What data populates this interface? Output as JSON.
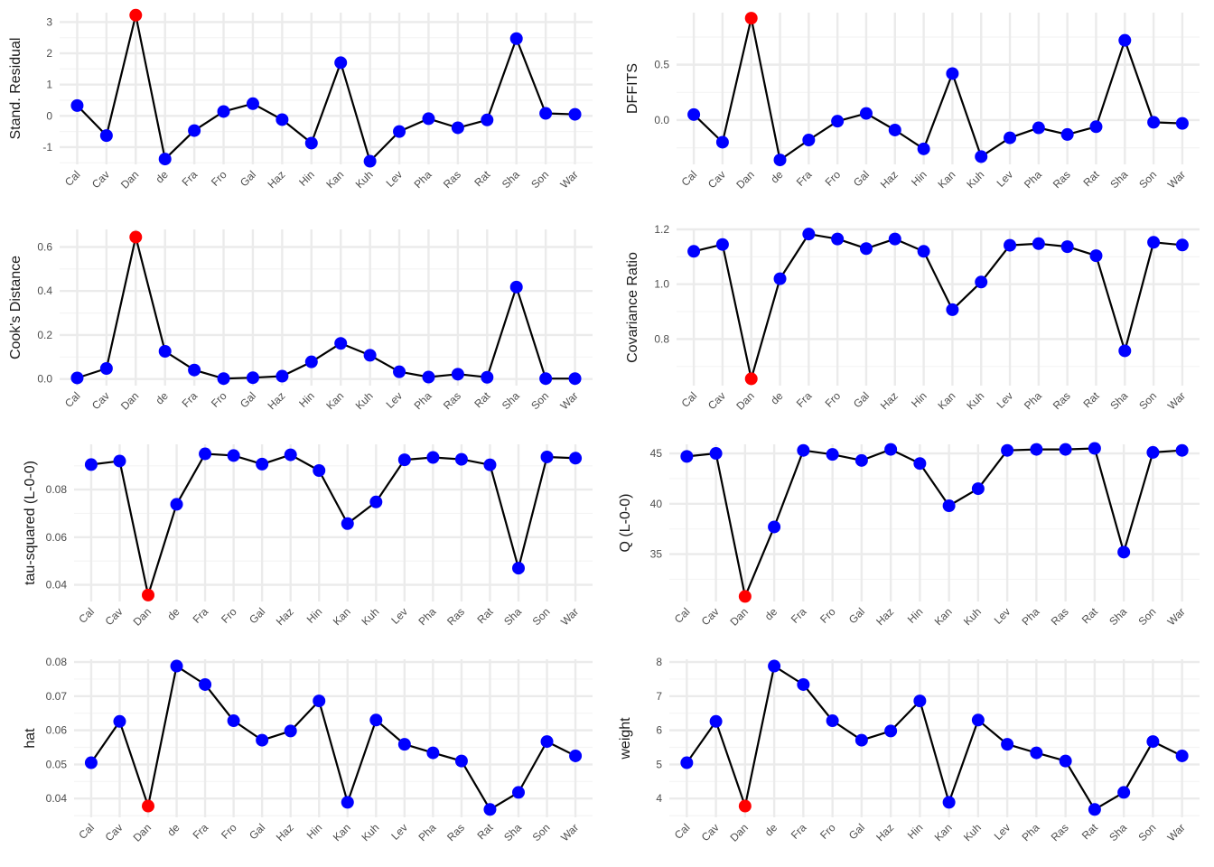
{
  "chart_data": [
    {
      "type": "line",
      "ylabel": "Stand. Residual",
      "categories": [
        "Cal",
        "Cav",
        "Dan",
        "de",
        "Fra",
        "Fro",
        "Gal",
        "Haz",
        "Hin",
        "Kan",
        "Kuh",
        "Lev",
        "Pha",
        "Ras",
        "Rat",
        "Sha",
        "Son",
        "War"
      ],
      "values": [
        0.33,
        -0.63,
        3.22,
        -1.38,
        -0.47,
        0.14,
        0.39,
        -0.12,
        -0.87,
        1.7,
        -1.45,
        -0.5,
        -0.09,
        -0.38,
        -0.13,
        2.47,
        0.08,
        0.05
      ],
      "highlight_index": 2,
      "ylim": [
        -1.55,
        3.3
      ],
      "yticks": [
        -1,
        0,
        1,
        2,
        3
      ],
      "ytick_labels": [
        "-1",
        "0",
        "1",
        "2",
        "3"
      ]
    },
    {
      "type": "line",
      "ylabel": "DFFITS",
      "categories": [
        "Cal",
        "Cav",
        "Dan",
        "de",
        "Fra",
        "Fro",
        "Gal",
        "Haz",
        "Hin",
        "Kan",
        "Kuh",
        "Lev",
        "Pha",
        "Ras",
        "Rat",
        "Sha",
        "Son",
        "War"
      ],
      "values": [
        0.05,
        -0.2,
        0.92,
        -0.36,
        -0.18,
        -0.01,
        0.06,
        -0.09,
        -0.26,
        0.42,
        -0.33,
        -0.16,
        -0.07,
        -0.13,
        -0.06,
        0.72,
        -0.02,
        -0.03
      ],
      "highlight_index": 2,
      "ylim": [
        -0.4,
        0.97
      ],
      "yticks": [
        0.0,
        0.5
      ],
      "ytick_labels": [
        "0.0",
        "0.5"
      ]
    },
    {
      "type": "line",
      "ylabel": "Cook's Distance",
      "categories": [
        "Cal",
        "Cav",
        "Dan",
        "de",
        "Fra",
        "Fro",
        "Gal",
        "Haz",
        "Hin",
        "Kan",
        "Kuh",
        "Lev",
        "Pha",
        "Ras",
        "Rat",
        "Sha",
        "Son",
        "War"
      ],
      "values": [
        0.005,
        0.048,
        0.645,
        0.126,
        0.041,
        0.002,
        0.006,
        0.013,
        0.078,
        0.162,
        0.108,
        0.033,
        0.009,
        0.022,
        0.008,
        0.418,
        0.002,
        0.002
      ],
      "highlight_index": 2,
      "ylim": [
        -0.03,
        0.68
      ],
      "yticks": [
        0.0,
        0.2,
        0.4,
        0.6
      ],
      "ytick_labels": [
        "0.0",
        "0.2",
        "0.4",
        "0.6"
      ]
    },
    {
      "type": "line",
      "ylabel": "Covariance Ratio",
      "categories": [
        "Cal",
        "Cav",
        "Dan",
        "de",
        "Fra",
        "Fro",
        "Gal",
        "Haz",
        "Hin",
        "Kan",
        "Kuh",
        "Lev",
        "Pha",
        "Ras",
        "Rat",
        "Sha",
        "Son",
        "War"
      ],
      "values": [
        1.12,
        1.145,
        0.655,
        1.02,
        1.183,
        1.165,
        1.13,
        1.165,
        1.12,
        0.907,
        1.008,
        1.142,
        1.148,
        1.137,
        1.104,
        0.757,
        1.153,
        1.143
      ],
      "highlight_index": 2,
      "ylim": [
        0.63,
        1.2
      ],
      "yticks": [
        0.8,
        1.0,
        1.2
      ],
      "ytick_labels": [
        "0.8",
        "1.0",
        "1.2"
      ]
    },
    {
      "type": "line",
      "ylabel": "tau-squared (L-0-0)",
      "categories": [
        "Cal",
        "Cav",
        "Dan",
        "de",
        "Fra",
        "Fro",
        "Gal",
        "Haz",
        "Hin",
        "Kan",
        "Kuh",
        "Lev",
        "Pha",
        "Ras",
        "Rat",
        "Sha",
        "Son",
        "War"
      ],
      "values": [
        0.0905,
        0.092,
        0.0357,
        0.0738,
        0.095,
        0.0943,
        0.0907,
        0.0946,
        0.088,
        0.0657,
        0.0748,
        0.0925,
        0.0935,
        0.0927,
        0.0904,
        0.047,
        0.0937,
        0.0932
      ],
      "highlight_index": 2,
      "ylim": [
        0.033,
        0.099
      ],
      "yticks": [
        0.04,
        0.06,
        0.08
      ],
      "ytick_labels": [
        "0.04",
        "0.06",
        "0.08"
      ]
    },
    {
      "type": "line",
      "ylabel": "Q (L-0-0)",
      "categories": [
        "Cal",
        "Cav",
        "Dan",
        "de",
        "Fra",
        "Fro",
        "Gal",
        "Haz",
        "Hin",
        "Kan",
        "Kuh",
        "Lev",
        "Pha",
        "Ras",
        "Rat",
        "Sha",
        "Son",
        "War"
      ],
      "values": [
        44.7,
        45.0,
        30.8,
        37.7,
        45.3,
        44.9,
        44.3,
        45.4,
        44.0,
        39.8,
        41.5,
        45.3,
        45.4,
        45.4,
        45.5,
        35.2,
        45.1,
        45.3
      ],
      "highlight_index": 2,
      "ylim": [
        30.3,
        45.9
      ],
      "yticks": [
        35,
        40,
        45
      ],
      "ytick_labels": [
        "35",
        "40",
        "45"
      ]
    },
    {
      "type": "line",
      "ylabel": "hat",
      "categories": [
        "Cal",
        "Cav",
        "Dan",
        "de",
        "Fra",
        "Fro",
        "Gal",
        "Haz",
        "Hin",
        "Kan",
        "Kuh",
        "Lev",
        "Pha",
        "Ras",
        "Rat",
        "Sha",
        "Son",
        "War"
      ],
      "values": [
        0.0505,
        0.0626,
        0.0378,
        0.0788,
        0.0734,
        0.0628,
        0.0571,
        0.0598,
        0.0686,
        0.0389,
        0.063,
        0.0559,
        0.0534,
        0.051,
        0.0368,
        0.0418,
        0.0567,
        0.0525
      ],
      "highlight_index": 2,
      "ylim": [
        0.0345,
        0.0808
      ],
      "yticks": [
        0.04,
        0.05,
        0.06,
        0.07,
        0.08
      ],
      "ytick_labels": [
        "0.04",
        "0.05",
        "0.06",
        "0.07",
        "0.08"
      ]
    },
    {
      "type": "line",
      "ylabel": "weight",
      "categories": [
        "Cal",
        "Cav",
        "Dan",
        "de",
        "Fra",
        "Fro",
        "Gal",
        "Haz",
        "Hin",
        "Kan",
        "Kuh",
        "Lev",
        "Pha",
        "Ras",
        "Rat",
        "Sha",
        "Son",
        "War"
      ],
      "values": [
        5.05,
        6.26,
        3.78,
        7.88,
        7.34,
        6.28,
        5.71,
        5.98,
        6.86,
        3.89,
        6.3,
        5.59,
        5.34,
        5.1,
        3.68,
        4.18,
        5.67,
        5.25
      ],
      "highlight_index": 2,
      "ylim": [
        3.45,
        8.08
      ],
      "yticks": [
        4,
        5,
        6,
        7,
        8
      ],
      "ytick_labels": [
        "4",
        "5",
        "6",
        "7",
        "8"
      ]
    }
  ],
  "colors": {
    "point": "#0000ff",
    "highlight": "#ff0000",
    "line": "#000000",
    "grid_major": "#ebebeb",
    "grid_minor": "#f4f4f4",
    "tick_text": "#4d4d4d",
    "axis_title": "#1a1a1a"
  },
  "grid": true,
  "legend": "none"
}
